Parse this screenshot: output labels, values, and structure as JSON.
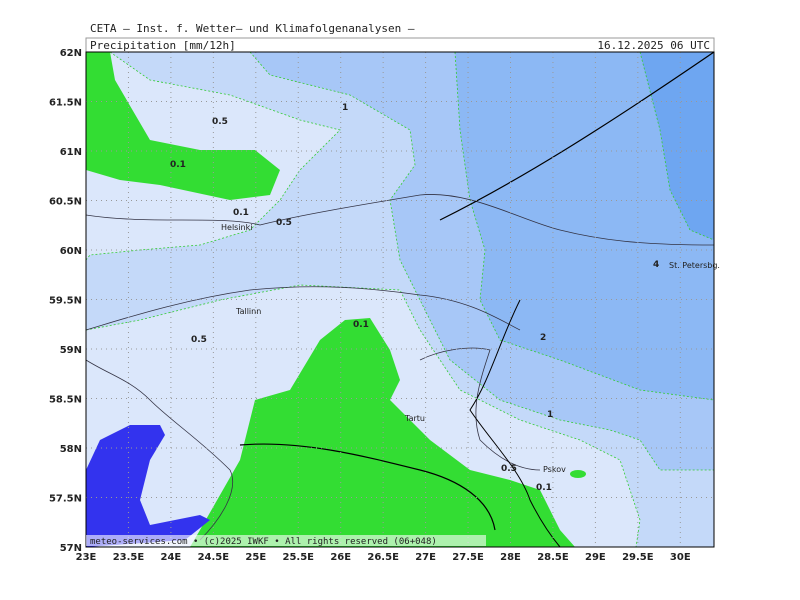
{
  "header": {
    "title": "CETA — Inst. f. Wetter— und Klimafolgenanalysen —",
    "field": "Precipitation [mm/12h]",
    "valid_time": "16.12.2025 06 UTC"
  },
  "map": {
    "lat_labels": [
      "62N",
      "61.5N",
      "61N",
      "60.5N",
      "60N",
      "59.5N",
      "59N",
      "58.5N",
      "58N",
      "57.5N",
      "57N"
    ],
    "lon_labels": [
      "23E",
      "23.5E",
      "24E",
      "24.5E",
      "25E",
      "25.5E",
      "26E",
      "26.5E",
      "27E",
      "27.5E",
      "28E",
      "28.5E",
      "29E",
      "29.5E",
      "30E"
    ],
    "contour_labels": [
      "0.5",
      "1",
      "0.1",
      "0.1",
      "0.5",
      "0.1",
      "0.5",
      "2",
      "1",
      "0.5",
      "0.1",
      "4"
    ],
    "cities": [
      "Helsinki",
      "Tallinn",
      "Tartu",
      "Pskov",
      "St. Petersbg."
    ]
  },
  "footer": "meteo-services.com • (c)2025 IWKF • All rights reserved (06+048)"
}
